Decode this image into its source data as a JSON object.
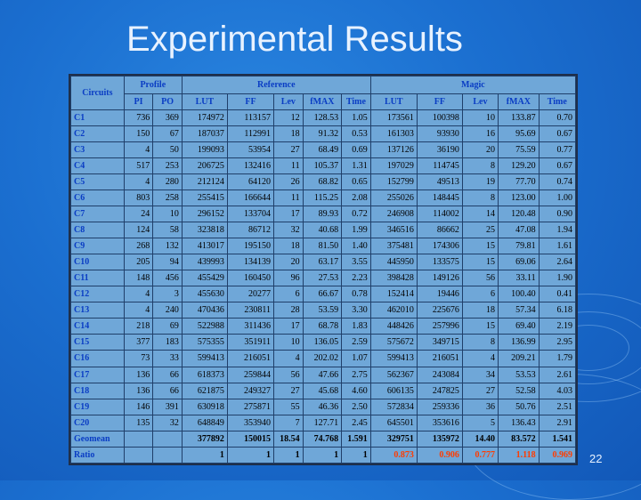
{
  "slide": {
    "title": "Experimental Results",
    "page_number": "22"
  },
  "table": {
    "group_headers": {
      "circuits": "Circuits",
      "profile": "Profile",
      "reference": "Reference",
      "magic": "Magic"
    },
    "sub_headers": [
      "PI",
      "PO",
      "LUT",
      "FF",
      "Lev",
      "fMAX",
      "Time",
      "LUT",
      "FF",
      "Lev",
      "fMAX",
      "Time"
    ],
    "rows": [
      {
        "name": "C1",
        "cells": [
          "736",
          "369",
          "174972",
          "113157",
          "12",
          "128.53",
          "1.05",
          "173561",
          "100398",
          "10",
          "133.87",
          "0.70"
        ]
      },
      {
        "name": "C2",
        "cells": [
          "150",
          "67",
          "187037",
          "112991",
          "18",
          "91.32",
          "0.53",
          "161303",
          "93930",
          "16",
          "95.69",
          "0.67"
        ]
      },
      {
        "name": "C3",
        "cells": [
          "4",
          "50",
          "199093",
          "53954",
          "27",
          "68.49",
          "0.69",
          "137126",
          "36190",
          "20",
          "75.59",
          "0.77"
        ]
      },
      {
        "name": "C4",
        "cells": [
          "517",
          "253",
          "206725",
          "132416",
          "11",
          "105.37",
          "1.31",
          "197029",
          "114745",
          "8",
          "129.20",
          "0.67"
        ]
      },
      {
        "name": "C5",
        "cells": [
          "4",
          "280",
          "212124",
          "64120",
          "26",
          "68.82",
          "0.65",
          "152799",
          "49513",
          "19",
          "77.70",
          "0.74"
        ]
      },
      {
        "name": "C6",
        "cells": [
          "803",
          "258",
          "255415",
          "166644",
          "11",
          "115.25",
          "2.08",
          "255026",
          "148445",
          "8",
          "123.00",
          "1.00"
        ]
      },
      {
        "name": "C7",
        "cells": [
          "24",
          "10",
          "296152",
          "133704",
          "17",
          "89.93",
          "0.72",
          "246908",
          "114002",
          "14",
          "120.48",
          "0.90"
        ]
      },
      {
        "name": "C8",
        "cells": [
          "124",
          "58",
          "323818",
          "86712",
          "32",
          "40.68",
          "1.99",
          "346516",
          "86662",
          "25",
          "47.08",
          "1.94"
        ]
      },
      {
        "name": "C9",
        "cells": [
          "268",
          "132",
          "413017",
          "195150",
          "18",
          "81.50",
          "1.40",
          "375481",
          "174306",
          "15",
          "79.81",
          "1.61"
        ]
      },
      {
        "name": "C10",
        "cells": [
          "205",
          "94",
          "439993",
          "134139",
          "20",
          "63.17",
          "3.55",
          "445950",
          "133575",
          "15",
          "69.06",
          "2.64"
        ]
      },
      {
        "name": "C11",
        "cells": [
          "148",
          "456",
          "455429",
          "160450",
          "96",
          "27.53",
          "2.23",
          "398428",
          "149126",
          "56",
          "33.11",
          "1.90"
        ]
      },
      {
        "name": "C12",
        "cells": [
          "4",
          "3",
          "455630",
          "20277",
          "6",
          "66.67",
          "0.78",
          "152414",
          "19446",
          "6",
          "100.40",
          "0.41"
        ]
      },
      {
        "name": "C13",
        "cells": [
          "4",
          "240",
          "470436",
          "230811",
          "28",
          "53.59",
          "3.30",
          "462010",
          "225676",
          "18",
          "57.34",
          "6.18"
        ]
      },
      {
        "name": "C14",
        "cells": [
          "218",
          "69",
          "522988",
          "311436",
          "17",
          "68.78",
          "1.83",
          "448426",
          "257996",
          "15",
          "69.40",
          "2.19"
        ]
      },
      {
        "name": "C15",
        "cells": [
          "377",
          "183",
          "575355",
          "351911",
          "10",
          "136.05",
          "2.59",
          "575672",
          "349715",
          "8",
          "136.99",
          "2.95"
        ]
      },
      {
        "name": "C16",
        "cells": [
          "73",
          "33",
          "599413",
          "216051",
          "4",
          "202.02",
          "1.07",
          "599413",
          "216051",
          "4",
          "209.21",
          "1.79"
        ]
      },
      {
        "name": "C17",
        "cells": [
          "136",
          "66",
          "618373",
          "259844",
          "56",
          "47.66",
          "2.75",
          "562367",
          "243084",
          "34",
          "53.53",
          "2.61"
        ]
      },
      {
        "name": "C18",
        "cells": [
          "136",
          "66",
          "621875",
          "249327",
          "27",
          "45.68",
          "4.60",
          "606135",
          "247825",
          "27",
          "52.58",
          "4.03"
        ]
      },
      {
        "name": "C19",
        "cells": [
          "146",
          "391",
          "630918",
          "275871",
          "55",
          "46.36",
          "2.50",
          "572834",
          "259336",
          "36",
          "50.76",
          "2.51"
        ]
      },
      {
        "name": "C20",
        "cells": [
          "135",
          "32",
          "648849",
          "353940",
          "7",
          "127.71",
          "2.45",
          "645501",
          "353616",
          "5",
          "136.43",
          "2.91"
        ]
      }
    ],
    "geomean": {
      "name": "Geomean",
      "cells": [
        "",
        "",
        "377892",
        "150015",
        "18.54",
        "74.768",
        "1.591",
        "329751",
        "135972",
        "14.40",
        "83.572",
        "1.541"
      ]
    },
    "ratio": {
      "name": "Ratio",
      "cells": [
        "",
        "",
        "1",
        "1",
        "1",
        "1",
        "1",
        "0.873",
        "0.906",
        "0.777",
        "1.118",
        "0.969"
      ]
    }
  },
  "colors": {
    "background": "#1b6fd0",
    "table_bg": "#6fa7d8",
    "header_text": "#0a3dc4",
    "highlight": "#ff3c00"
  }
}
